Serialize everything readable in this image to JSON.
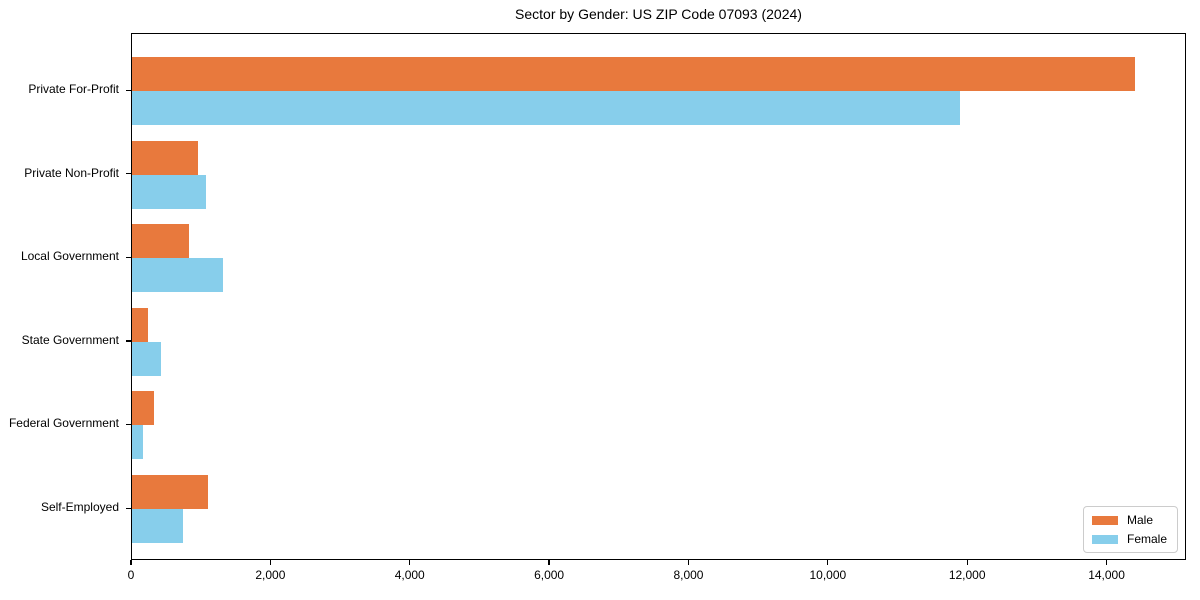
{
  "chart_data": {
    "type": "bar",
    "orientation": "horizontal",
    "title": "Sector by Gender: US ZIP Code 07093 (2024)",
    "categories": [
      "Private For-Profit",
      "Private Non-Profit",
      "Local Government",
      "State Government",
      "Federal Government",
      "Self-Employed"
    ],
    "series": [
      {
        "name": "Male",
        "color": "#E8793D",
        "values": [
          14420,
          950,
          820,
          230,
          310,
          1090
        ]
      },
      {
        "name": "Female",
        "color": "#87CEEB",
        "values": [
          11900,
          1060,
          1310,
          420,
          160,
          740
        ]
      }
    ],
    "xlabel": "",
    "ylabel": "",
    "xlim": [
      0,
      15140
    ],
    "x_ticks": [
      {
        "value": 0,
        "label": "0"
      },
      {
        "value": 2000,
        "label": "2,000"
      },
      {
        "value": 4000,
        "label": "4,000"
      },
      {
        "value": 6000,
        "label": "6,000"
      },
      {
        "value": 8000,
        "label": "8,000"
      },
      {
        "value": 10000,
        "label": "10,000"
      },
      {
        "value": 12000,
        "label": "12,000"
      },
      {
        "value": 14000,
        "label": "14,000"
      }
    ],
    "grid": false,
    "legend": {
      "position": "lower right",
      "entries": [
        "Male",
        "Female"
      ]
    }
  },
  "colors": {
    "male": "#E8793D",
    "female": "#87CEEB",
    "axis": "#000000",
    "legend_border": "#cccccc",
    "background": "#ffffff",
    "text": "#000000"
  }
}
